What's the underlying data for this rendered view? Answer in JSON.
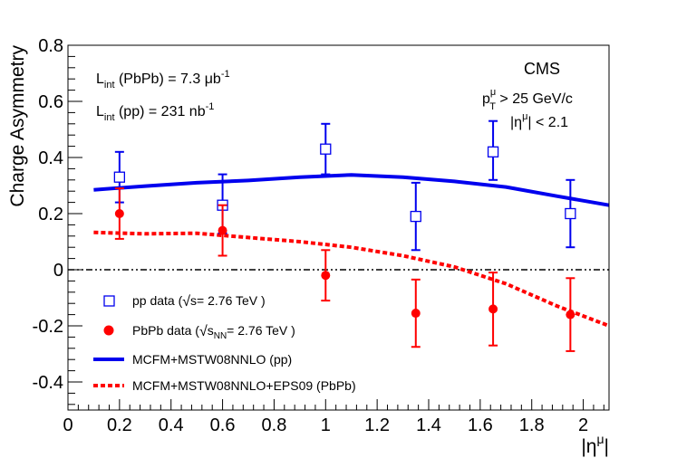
{
  "chart_data": {
    "type": "scatter",
    "title": "",
    "xlabel": "|η^μ|",
    "ylabel": "Charge Asymmetry",
    "xlim": [
      0,
      2.1
    ],
    "ylim": [
      -0.5,
      0.8
    ],
    "x_ticks": [
      0,
      0.2,
      0.4,
      0.6,
      0.8,
      1,
      1.2,
      1.4,
      1.6,
      1.8,
      2
    ],
    "x_tick_labels": [
      "0",
      "0.2",
      "0.4",
      "0.6",
      "0.8",
      "1",
      "1.2",
      "1.4",
      "1.6",
      "1.8",
      "2"
    ],
    "y_ticks": [
      -0.4,
      -0.2,
      0,
      0.2,
      0.4,
      0.6,
      0.8
    ],
    "y_tick_labels": [
      "-0.4",
      "-0.2",
      "0",
      "0.2",
      "0.4",
      "0.6",
      "0.8"
    ],
    "grid": false,
    "reference_line_y": 0,
    "series": [
      {
        "name": "pp data (√s= 2.76 TeV )",
        "kind": "points",
        "marker": "open-square",
        "color": "#0000ee",
        "x": [
          0.2,
          0.6,
          1.0,
          1.35,
          1.65,
          1.95
        ],
        "y": [
          0.33,
          0.23,
          0.43,
          0.19,
          0.42,
          0.2
        ],
        "err_low": [
          0.09,
          0.1,
          0.09,
          0.12,
          0.1,
          0.12
        ],
        "err_high": [
          0.09,
          0.11,
          0.09,
          0.12,
          0.11,
          0.12
        ]
      },
      {
        "name": "PbPb data (√sNN= 2.76 TeV )",
        "kind": "points",
        "marker": "filled-circle",
        "color": "#ff0000",
        "x": [
          0.2,
          0.6,
          1.0,
          1.35,
          1.65,
          1.95
        ],
        "y": [
          0.2,
          0.14,
          -0.02,
          -0.155,
          -0.14,
          -0.16
        ],
        "err_low": [
          0.09,
          0.09,
          0.09,
          0.12,
          0.13,
          0.13
        ],
        "err_high": [
          0.09,
          0.09,
          0.09,
          0.12,
          0.13,
          0.13
        ]
      },
      {
        "name": "MCFM+MSTW08NNLO (pp)",
        "kind": "line",
        "style": "solid",
        "color": "#0000ee",
        "x": [
          0.1,
          0.3,
          0.5,
          0.7,
          0.9,
          1.1,
          1.3,
          1.5,
          1.7,
          1.9,
          2.1
        ],
        "y": [
          0.285,
          0.298,
          0.31,
          0.318,
          0.33,
          0.338,
          0.33,
          0.315,
          0.295,
          0.262,
          0.23
        ]
      },
      {
        "name": "MCFM+MSTW08NNLO+EPS09 (PbPb)",
        "kind": "line",
        "style": "dashed",
        "color": "#ff0000",
        "x": [
          0.1,
          0.3,
          0.5,
          0.7,
          0.9,
          1.1,
          1.3,
          1.5,
          1.7,
          1.9,
          2.1
        ],
        "y": [
          0.133,
          0.128,
          0.13,
          0.115,
          0.1,
          0.08,
          0.05,
          0.01,
          -0.05,
          -0.13,
          -0.2
        ]
      }
    ],
    "annotations": {
      "lumi_pbpb": {
        "prefix": "L",
        "sub": "int",
        "text": " (PbPb) = 7.3 μb",
        "sup": "-1"
      },
      "lumi_pp": {
        "prefix": "L",
        "sub": "int",
        "text": " (pp) = 231 nb",
        "sup": "-1"
      },
      "experiment": "CMS",
      "cut_pt": {
        "prefix": "p",
        "sup": "μ",
        "sub": "T",
        "text": " > 25 GeV/c"
      },
      "cut_eta": {
        "pre": "|η",
        "sup": "μ",
        "post": "| < 2.1"
      }
    },
    "legend": {
      "position": "bottom-left",
      "entries": [
        {
          "marker": "open-square",
          "color": "#0000ee",
          "pre": "pp data (",
          "root": "s",
          "sub": "",
          "post": "= 2.76 TeV )"
        },
        {
          "marker": "filled-circle",
          "color": "#ff0000",
          "pre": "PbPb data (",
          "root": "s",
          "sub": "NN",
          "post": "= 2.76 TeV )"
        },
        {
          "marker": "solid-line",
          "color": "#0000ee",
          "label": "MCFM+MSTW08NNLO (pp)"
        },
        {
          "marker": "dashed-line",
          "color": "#ff0000",
          "label": "MCFM+MSTW08NNLO+EPS09 (PbPb)"
        }
      ]
    }
  }
}
